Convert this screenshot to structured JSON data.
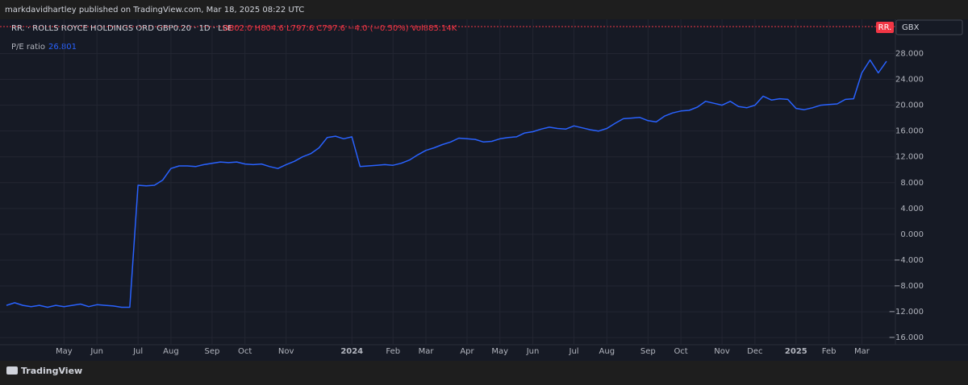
{
  "chart_data": {
    "type": "line",
    "title": "markdavidhartley published on TradingView.com, Mar 18, 2025 08:22 UTC",
    "symbol": "RR. · ROLLS ROYCE HOLDINGS ORD GBP0.20 · 1D · LSE",
    "ohlc": "O802.0 H804.6 L797.6 C797.6 −4.0 (−0.50%) Vol885.14K",
    "badge": "RR.",
    "currency": "GBX",
    "brand": "TradingView",
    "categories": [
      null,
      null,
      null,
      null,
      null,
      null,
      null,
      "May",
      null,
      null,
      null,
      "Jun",
      null,
      null,
      null,
      null,
      "Jul",
      null,
      null,
      null,
      "Aug",
      null,
      null,
      null,
      null,
      "Sep",
      null,
      null,
      null,
      "Oct",
      null,
      null,
      null,
      null,
      "Nov",
      null,
      null,
      null,
      null,
      null,
      null,
      null,
      "2024",
      null,
      null,
      null,
      null,
      "Feb",
      null,
      null,
      null,
      "Mar",
      null,
      null,
      null,
      null,
      "Apr",
      null,
      null,
      null,
      "May",
      null,
      null,
      null,
      "Jun",
      null,
      null,
      null,
      null,
      "Jul",
      null,
      null,
      null,
      "Aug",
      null,
      null,
      null,
      null,
      "Sep",
      null,
      null,
      null,
      "Oct",
      null,
      null,
      null,
      null,
      "Nov",
      null,
      null,
      null,
      "Dec",
      null,
      null,
      null,
      null,
      "2025",
      null,
      null,
      null,
      "Feb",
      null,
      null,
      null,
      "Mar",
      null,
      null,
      null
    ],
    "series": [
      {
        "name": "P/E ratio",
        "color": "#2962ff",
        "values": [
          -11.0,
          -10.6,
          -11.0,
          -11.2,
          -11.0,
          -11.3,
          -11.0,
          -11.2,
          -11.0,
          -10.8,
          -11.2,
          -10.9,
          -11.0,
          -11.1,
          -11.3,
          -11.3,
          7.6,
          7.5,
          7.6,
          8.4,
          10.2,
          10.6,
          10.6,
          10.5,
          10.8,
          11.0,
          11.2,
          11.1,
          11.2,
          10.9,
          10.8,
          10.9,
          10.5,
          10.2,
          10.8,
          11.3,
          12.0,
          12.5,
          13.4,
          15.0,
          15.2,
          14.8,
          15.1,
          10.5,
          10.6,
          10.7,
          10.8,
          10.7,
          11.0,
          11.5,
          12.3,
          13.0,
          13.4,
          13.9,
          14.3,
          14.9,
          14.8,
          14.7,
          14.3,
          14.4,
          14.8,
          15.0,
          15.1,
          15.7,
          15.9,
          16.3,
          16.6,
          16.4,
          16.3,
          16.8,
          16.5,
          16.2,
          16.0,
          16.4,
          17.2,
          17.9,
          18.0,
          18.1,
          17.6,
          17.4,
          18.3,
          18.8,
          19.1,
          19.2,
          19.7,
          20.6,
          20.3,
          20.0,
          20.6,
          19.8,
          19.6,
          20.0,
          21.4,
          20.8,
          21.0,
          20.9,
          19.5,
          19.3,
          19.6,
          20.0,
          20.1,
          20.2,
          20.9,
          21.0,
          25.0,
          27.0,
          25.0,
          26.801
        ]
      }
    ],
    "ylim": [
      -17.1,
      32.8
    ],
    "yticks": [
      {
        "value": 28,
        "label": "28.000"
      },
      {
        "value": 24,
        "label": "24.000"
      },
      {
        "value": 20,
        "label": "20.000"
      },
      {
        "value": 16,
        "label": "16.000"
      },
      {
        "value": 12,
        "label": "12.000"
      },
      {
        "value": 8,
        "label": "8.000"
      },
      {
        "value": 4,
        "label": "4.000"
      },
      {
        "value": 0,
        "label": "0.000"
      },
      {
        "value": -4,
        "label": "−4.000"
      },
      {
        "value": -8,
        "label": "−8.000"
      },
      {
        "value": -12,
        "label": "−12.000"
      },
      {
        "value": -16,
        "label": "−16.000"
      }
    ],
    "grid": true
  }
}
